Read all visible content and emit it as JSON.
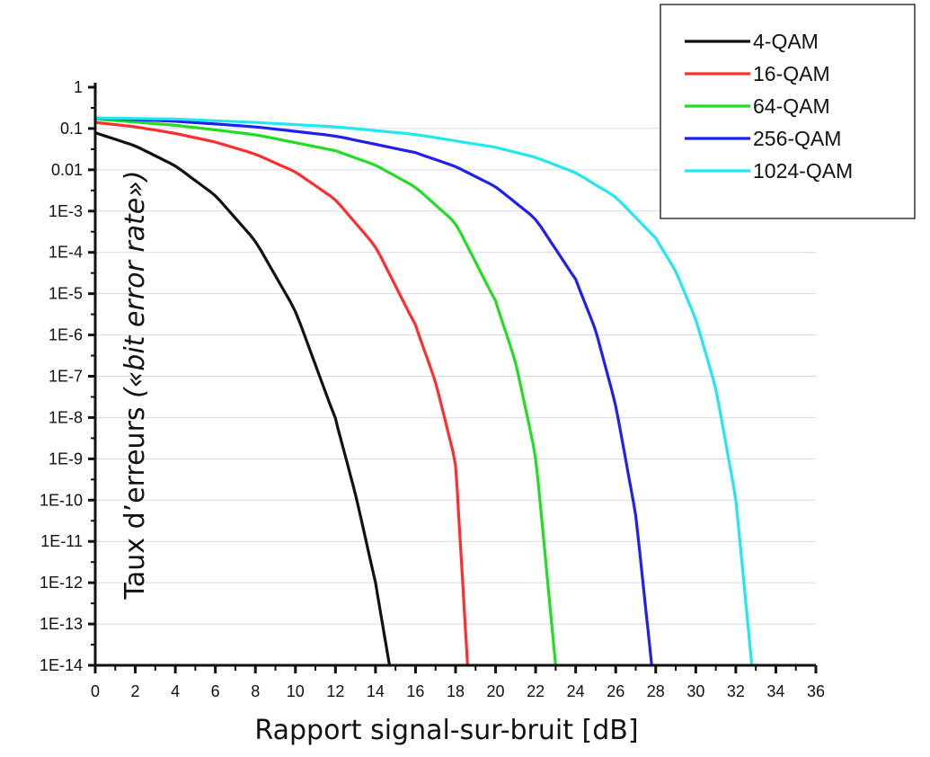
{
  "chart_data": {
    "type": "line",
    "title": "",
    "xlabel": "Rapport signal-sur-bruit [dB]",
    "ylabel_main": "Taux d’erreurs ",
    "ylabel_italic": "(«bit error rate»)",
    "x_scale": "linear",
    "y_scale": "log",
    "xlim": [
      0,
      36
    ],
    "ylim": [
      1e-14,
      1
    ],
    "x_ticks": [
      0,
      2,
      4,
      6,
      8,
      10,
      12,
      14,
      16,
      18,
      20,
      22,
      24,
      26,
      28,
      30,
      32,
      34,
      36
    ],
    "x_tick_labels": [
      "0",
      "2",
      "4",
      "6",
      "8",
      "10",
      "12",
      "14",
      "16",
      "18",
      "20",
      "22",
      "24",
      "26",
      "28",
      "30",
      "32",
      "34",
      "36"
    ],
    "y_tick_labels": [
      "1",
      "0.1",
      "0.01",
      "1E-3",
      "1E-4",
      "1E-5",
      "1E-6",
      "1E-7",
      "1E-8",
      "1E-9",
      "1E-10",
      "1E-11",
      "1E-12",
      "1E-13",
      "1E-14"
    ],
    "grid": true,
    "legend_position": "top-right",
    "series": [
      {
        "name": "4-QAM",
        "color": "#111111",
        "x": [
          0,
          2,
          4,
          6,
          8,
          10,
          12,
          13,
          14,
          14.7
        ],
        "y": [
          0.079,
          0.038,
          0.0125,
          0.0024,
          0.00019,
          3.9e-06,
          9.1e-09,
          1.4e-10,
          1e-12,
          1e-14
        ]
      },
      {
        "name": "16-QAM",
        "color": "#ff2e2e",
        "x": [
          0,
          2,
          4,
          6,
          8,
          10,
          12,
          14,
          16,
          17,
          18,
          18.6
        ],
        "y": [
          0.14,
          0.11,
          0.076,
          0.047,
          0.024,
          0.0089,
          0.0019,
          0.00014,
          1.7e-06,
          7.3e-08,
          8.4e-10,
          1e-14
        ]
      },
      {
        "name": "64-QAM",
        "color": "#22dd22",
        "x": [
          0,
          4,
          8,
          12,
          14,
          16,
          18,
          20,
          21,
          22,
          23
        ],
        "y": [
          0.17,
          0.12,
          0.071,
          0.029,
          0.013,
          0.0038,
          0.00052,
          6.5e-06,
          2.2e-07,
          1.2e-09,
          1e-14
        ]
      },
      {
        "name": "256-QAM",
        "color": "#2020ee",
        "x": [
          0,
          4,
          8,
          12,
          16,
          18,
          20,
          22,
          24,
          25,
          26,
          27,
          27.8
        ],
        "y": [
          0.18,
          0.15,
          0.11,
          0.066,
          0.026,
          0.012,
          0.0039,
          0.00065,
          2.2e-05,
          1.3e-06,
          2e-08,
          4.5e-11,
          1e-14
        ]
      },
      {
        "name": "1024-QAM",
        "color": "#22e6f0",
        "x": [
          0,
          4,
          8,
          12,
          16,
          20,
          22,
          24,
          26,
          28,
          29,
          30,
          31,
          32,
          32.8
        ],
        "y": [
          0.18,
          0.17,
          0.14,
          0.11,
          0.072,
          0.035,
          0.02,
          0.0085,
          0.0022,
          0.00022,
          3.5e-05,
          2.4e-06,
          5.2e-08,
          1.1e-10,
          1e-14
        ]
      }
    ]
  }
}
